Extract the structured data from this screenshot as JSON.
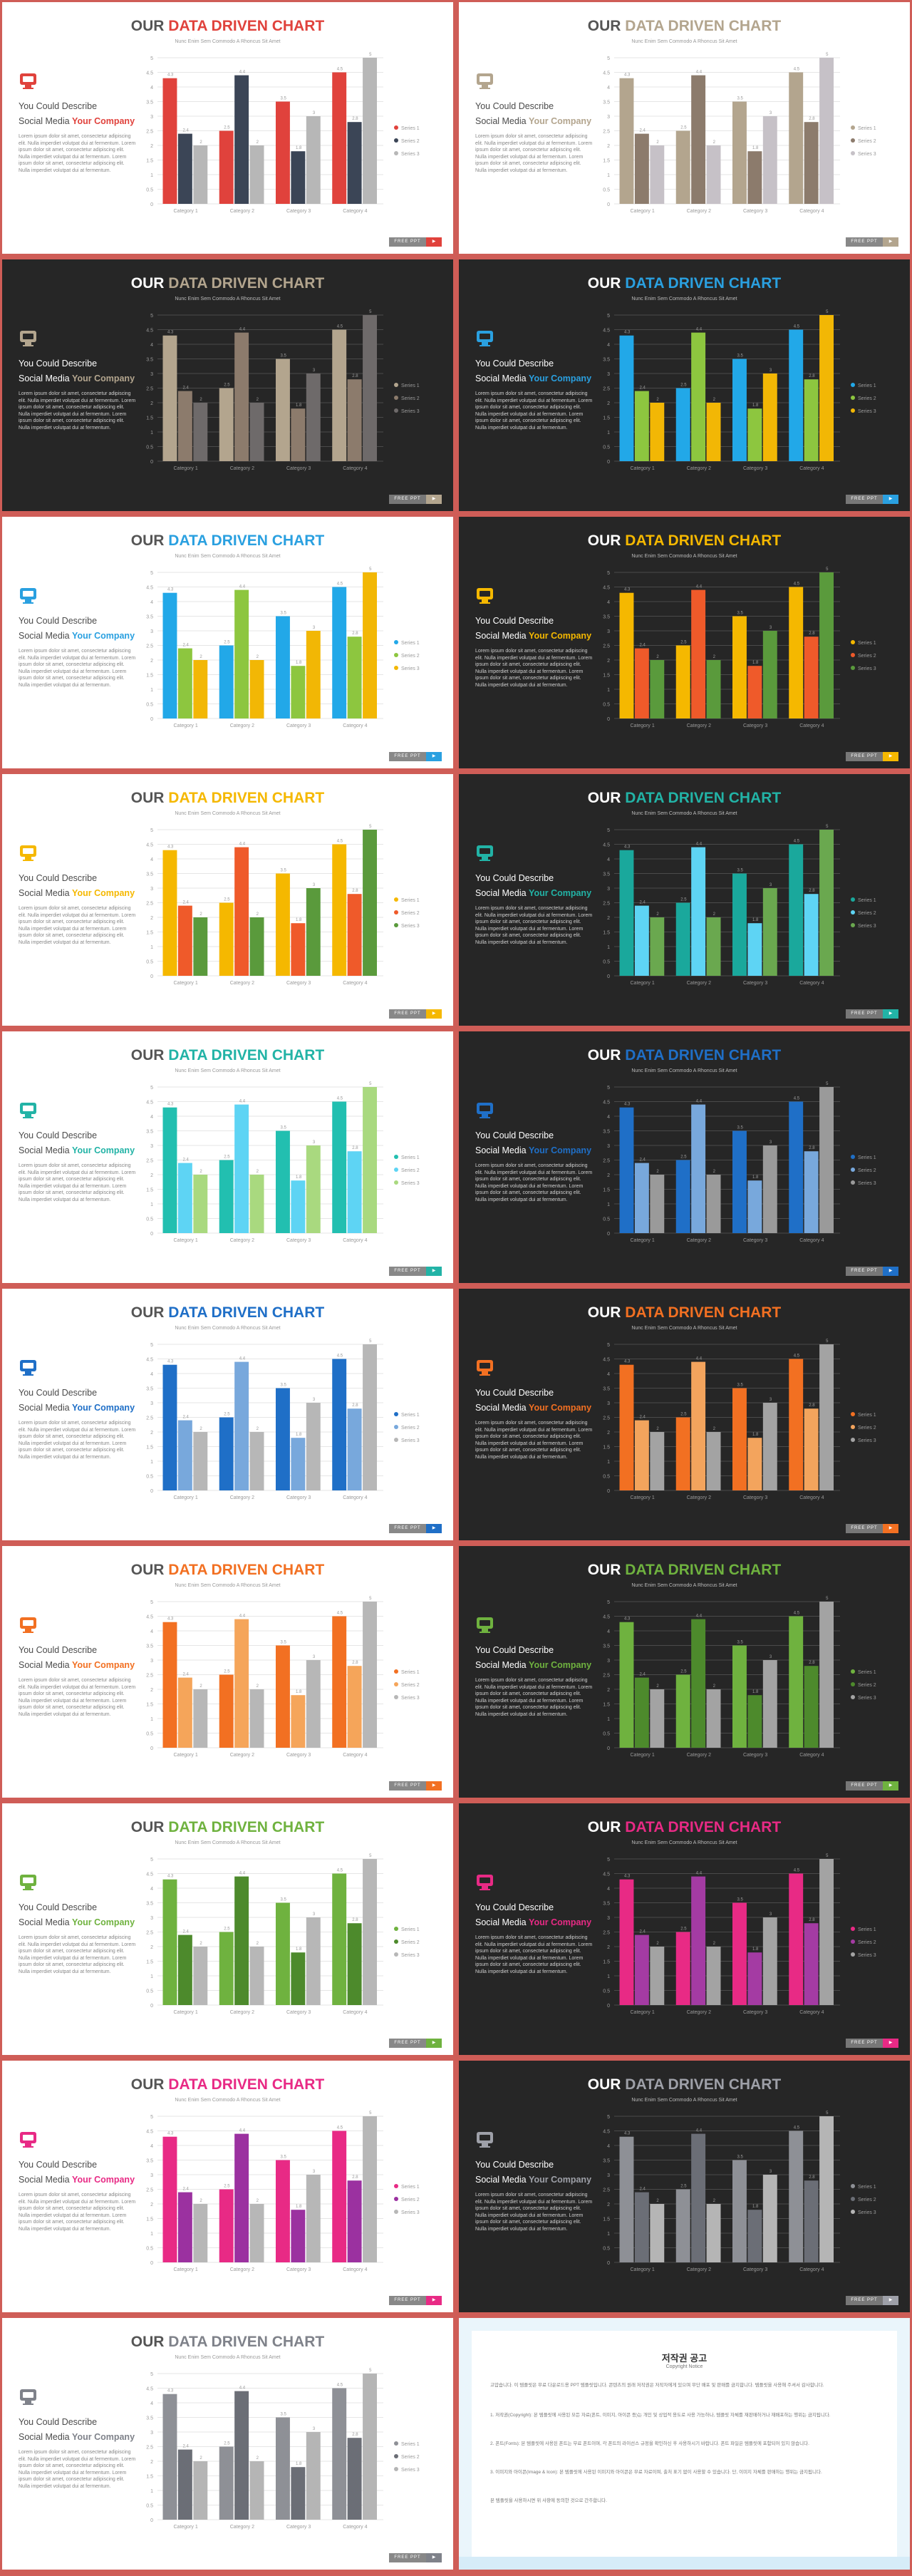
{
  "slide_text": {
    "title_lead": "OUR ",
    "title_accent": "DATA DRIVEN CHART",
    "subtitle": "Nunc Enim Sem Commodo A Rhoncus Sit Amet",
    "desc_line1": "You Could Describe",
    "desc_line2_lead": "Social Media ",
    "desc_line2_accent": "Your Company",
    "body": "Lorem ipsum dolor sit amet, consectetur adipiscing elit. Nulla imperdiet volutpat dui at fermentum. Lorem ipsum dolor sit amet, consectetur adipiscing elit. Nulla imperdiet volutpat dui at fermentum. Lorem ipsum dolor sit amet, consectetur adipiscing elit. Nulla imperdiet volutpat dui at fermentum.",
    "page_label": "FREE PPT",
    "page_mark": "▶"
  },
  "chart_data": {
    "type": "bar",
    "categories": [
      "Category 1",
      "Category 2",
      "Category 3",
      "Category 4"
    ],
    "series": [
      {
        "name": "Series 1",
        "values": [
          4.3,
          2.5,
          3.5,
          4.5
        ]
      },
      {
        "name": "Series 2",
        "values": [
          2.4,
          4.4,
          1.8,
          2.8
        ]
      },
      {
        "name": "Series 3",
        "values": [
          2.0,
          2.0,
          3.0,
          5.0
        ]
      }
    ],
    "ylim": [
      0,
      5
    ],
    "yticks": [
      0,
      0.5,
      1,
      1.5,
      2,
      2.5,
      3,
      3.5,
      4,
      4.5,
      5
    ],
    "grid": true,
    "legend": "right"
  },
  "slides": [
    {
      "theme": "light",
      "accent": "#e0423c",
      "colors": [
        "#e0423c",
        "#3b4556",
        "#b7b7b7"
      ]
    },
    {
      "theme": "light",
      "accent": "#b3a58e",
      "colors": [
        "#b3a58e",
        "#8c7b6c",
        "#c6c1c7"
      ]
    },
    {
      "theme": "dark",
      "accent": "#b3a58e",
      "colors": [
        "#b3a58e",
        "#8c7b6c",
        "#6e6a6a"
      ]
    },
    {
      "theme": "dark",
      "accent": "#2aa0e0",
      "colors": [
        "#22a8e8",
        "#8dc63f",
        "#f2b705"
      ]
    },
    {
      "theme": "light",
      "accent": "#2aa0e0",
      "colors": [
        "#22a8e8",
        "#8dc63f",
        "#f2b705"
      ]
    },
    {
      "theme": "dark",
      "accent": "#f5b800",
      "colors": [
        "#f5b800",
        "#ef5a2a",
        "#5a9a3c"
      ]
    },
    {
      "theme": "light",
      "accent": "#f5b800",
      "colors": [
        "#f5b800",
        "#ef5a2a",
        "#5a9a3c"
      ]
    },
    {
      "theme": "dark",
      "accent": "#22b3a6",
      "colors": [
        "#1aa89c",
        "#5ed4f4",
        "#6aa84f"
      ]
    },
    {
      "theme": "light",
      "accent": "#22b3a6",
      "colors": [
        "#22bfb0",
        "#5ed4f4",
        "#a9d97f"
      ]
    },
    {
      "theme": "dark",
      "accent": "#1f6fc7",
      "colors": [
        "#1f6fc7",
        "#78a8dc",
        "#9a9a9a"
      ]
    },
    {
      "theme": "light",
      "accent": "#1f6fc7",
      "colors": [
        "#1f6fc7",
        "#78a8dc",
        "#b7b7b7"
      ]
    },
    {
      "theme": "dark",
      "accent": "#f27022",
      "colors": [
        "#f27022",
        "#f3a45d",
        "#a3a3a3"
      ]
    },
    {
      "theme": "light",
      "accent": "#f27022",
      "colors": [
        "#f27022",
        "#f5a55a",
        "#b7b7b7"
      ]
    },
    {
      "theme": "dark",
      "accent": "#6fb23f",
      "colors": [
        "#6fb23f",
        "#4d8a2c",
        "#a3a3a3"
      ]
    },
    {
      "theme": "light",
      "accent": "#6fb23f",
      "colors": [
        "#6fb23f",
        "#4d8a2c",
        "#b7b7b7"
      ]
    },
    {
      "theme": "dark",
      "accent": "#e82a85",
      "colors": [
        "#e82a85",
        "#a43ba3",
        "#a3a3a3"
      ]
    },
    {
      "theme": "light",
      "accent": "#e82a85",
      "colors": [
        "#e82a85",
        "#9b31a0",
        "#b7b7b7"
      ]
    },
    {
      "theme": "dark",
      "accent": "#9ea0a8",
      "colors": [
        "#8e9096",
        "#6b6e76",
        "#b5b5b5"
      ]
    },
    {
      "theme": "light",
      "accent": "#7f828a",
      "colors": [
        "#8e9096",
        "#6b6e76",
        "#b5b5b5"
      ]
    }
  ],
  "notice": {
    "title": "저작권 공고",
    "subtitle": "Copyright Notice",
    "paragraphs": [
      "고맙습니다. 이 템플릿은 무료 다운로드용 PPT 템플릿입니다. 콘텐츠의 원래 저작권은 저작자에게 있으며 무단 배포 및 판매를 금지합니다. 템플릿을 사용해 주셔서 감사합니다.",
      "1. 저작권(Copyright): 본 템플릿에 사용된 모든 자료(폰트, 이미지, 아이콘 등)는 개인 및 상업적 용도로 사용 가능하나, 템플릿 자체를 재판매하거나 재배포하는 행위는 금지됩니다.",
      "2. 폰트(Fonts): 본 템플릿에 사용된 폰트는 무료 폰트이며, 각 폰트의 라이선스 규정을 확인하신 후 사용하시기 바랍니다. 폰트 파일은 템플릿에 포함되어 있지 않습니다.",
      "3. 이미지와 아이콘(Image & Icon): 본 템플릿에 사용된 이미지와 아이콘은 무료 자료이며, 출처 표기 없이 사용할 수 있습니다. 단, 이미지 자체를 판매하는 행위는 금지됩니다.",
      "본 템플릿을 사용하시면 위 사항에 동의한 것으로 간주합니다."
    ]
  }
}
